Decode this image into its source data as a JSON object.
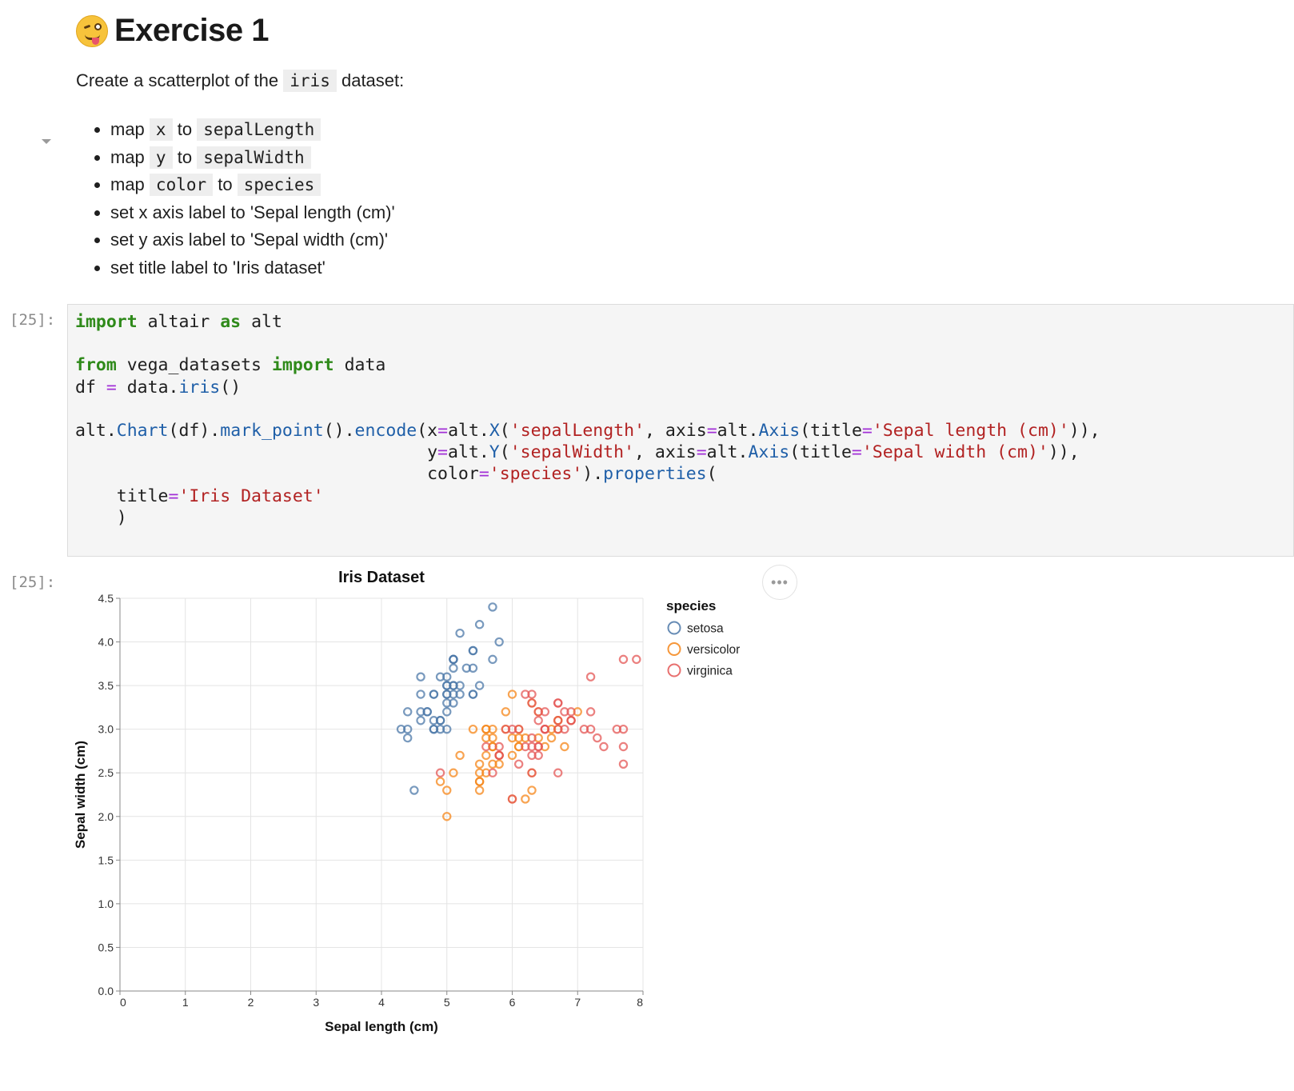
{
  "markdown": {
    "heading": "Exercise 1",
    "heading_emoji": "winking-face-with-tongue-icon",
    "intro_before": "Create a scatterplot of the",
    "intro_code": "iris",
    "intro_after": "dataset:",
    "tasks": [
      {
        "pre": "map",
        "c1": "x",
        "mid": "to",
        "c2": "sepalLength"
      },
      {
        "pre": "map",
        "c1": "y",
        "mid": "to",
        "c2": "sepalWidth"
      },
      {
        "pre": "map",
        "c1": "color",
        "mid": "to",
        "c2": "species"
      }
    ],
    "plain_tasks": [
      "set x axis label to 'Sepal length (cm)'",
      "set y axis label to 'Sepal width (cm)'",
      "set title label to 'Iris dataset'"
    ]
  },
  "code_cell": {
    "prompt": "[25]:",
    "lines": [
      "import altair as alt",
      "",
      "from vega_datasets import data",
      "df = data.iris()",
      "",
      "alt.Chart(df).mark_point().encode(x=alt.X('sepalLength', axis=alt.Axis(title='Sepal length (cm)')),",
      "                                  y=alt.Y('sepalWidth', axis=alt.Axis(title='Sepal width (cm)')),",
      "                                  color='species').properties(",
      "    title='Iris Dataset'",
      "    )"
    ]
  },
  "output_cell": {
    "prompt": "[25]:",
    "more_icon": "ellipsis-icon"
  },
  "chart_data": {
    "type": "scatter",
    "title": "Iris Dataset",
    "xlabel": "Sepal length (cm)",
    "ylabel": "Sepal width (cm)",
    "xlim": [
      0,
      8
    ],
    "ylim": [
      0,
      4.5
    ],
    "x_ticks": [
      "0",
      "1",
      "2",
      "3",
      "4",
      "5",
      "6",
      "7",
      "8"
    ],
    "y_ticks": [
      "0.0",
      "0.5",
      "1.0",
      "1.5",
      "2.0",
      "2.5",
      "3.0",
      "3.5",
      "4.0",
      "4.5"
    ],
    "grid": true,
    "legend_title": "species",
    "legend_position": "right",
    "series": [
      {
        "name": "setosa",
        "color": "#4c78a8",
        "points": [
          [
            5.1,
            3.5
          ],
          [
            4.9,
            3.0
          ],
          [
            4.7,
            3.2
          ],
          [
            4.6,
            3.1
          ],
          [
            5.0,
            3.6
          ],
          [
            5.4,
            3.9
          ],
          [
            4.6,
            3.4
          ],
          [
            5.0,
            3.4
          ],
          [
            4.4,
            2.9
          ],
          [
            4.9,
            3.1
          ],
          [
            5.4,
            3.7
          ],
          [
            4.8,
            3.4
          ],
          [
            4.8,
            3.0
          ],
          [
            4.3,
            3.0
          ],
          [
            5.8,
            4.0
          ],
          [
            5.7,
            4.4
          ],
          [
            5.4,
            3.9
          ],
          [
            5.1,
            3.5
          ],
          [
            5.7,
            3.8
          ],
          [
            5.1,
            3.8
          ],
          [
            5.4,
            3.4
          ],
          [
            5.1,
            3.7
          ],
          [
            4.6,
            3.6
          ],
          [
            5.1,
            3.3
          ],
          [
            4.8,
            3.4
          ],
          [
            5.0,
            3.0
          ],
          [
            5.0,
            3.4
          ],
          [
            5.2,
            3.5
          ],
          [
            5.2,
            3.4
          ],
          [
            4.7,
            3.2
          ],
          [
            4.8,
            3.1
          ],
          [
            5.4,
            3.4
          ],
          [
            5.2,
            4.1
          ],
          [
            5.5,
            4.2
          ],
          [
            4.9,
            3.1
          ],
          [
            5.0,
            3.2
          ],
          [
            5.5,
            3.5
          ],
          [
            4.9,
            3.6
          ],
          [
            4.4,
            3.0
          ],
          [
            5.1,
            3.4
          ],
          [
            5.0,
            3.5
          ],
          [
            4.5,
            2.3
          ],
          [
            4.4,
            3.2
          ],
          [
            5.0,
            3.5
          ],
          [
            5.1,
            3.8
          ],
          [
            4.8,
            3.0
          ],
          [
            5.1,
            3.8
          ],
          [
            4.6,
            3.2
          ],
          [
            5.3,
            3.7
          ],
          [
            5.0,
            3.3
          ]
        ]
      },
      {
        "name": "versicolor",
        "color": "#f58518",
        "points": [
          [
            7.0,
            3.2
          ],
          [
            6.4,
            3.2
          ],
          [
            6.9,
            3.1
          ],
          [
            5.5,
            2.3
          ],
          [
            6.5,
            2.8
          ],
          [
            5.7,
            2.8
          ],
          [
            6.3,
            3.3
          ],
          [
            4.9,
            2.4
          ],
          [
            6.6,
            2.9
          ],
          [
            5.2,
            2.7
          ],
          [
            5.0,
            2.0
          ],
          [
            5.9,
            3.0
          ],
          [
            6.0,
            2.2
          ],
          [
            6.1,
            2.9
          ],
          [
            5.6,
            2.9
          ],
          [
            6.7,
            3.1
          ],
          [
            5.6,
            3.0
          ],
          [
            5.8,
            2.7
          ],
          [
            6.2,
            2.2
          ],
          [
            5.6,
            2.5
          ],
          [
            5.9,
            3.2
          ],
          [
            6.1,
            2.8
          ],
          [
            6.3,
            2.5
          ],
          [
            6.1,
            2.8
          ],
          [
            6.4,
            2.9
          ],
          [
            6.6,
            3.0
          ],
          [
            6.8,
            2.8
          ],
          [
            6.7,
            3.0
          ],
          [
            6.0,
            2.9
          ],
          [
            5.7,
            2.6
          ],
          [
            5.5,
            2.4
          ],
          [
            5.5,
            2.4
          ],
          [
            5.8,
            2.7
          ],
          [
            6.0,
            2.7
          ],
          [
            5.4,
            3.0
          ],
          [
            6.0,
            3.4
          ],
          [
            6.7,
            3.1
          ],
          [
            6.3,
            2.3
          ],
          [
            5.6,
            3.0
          ],
          [
            5.5,
            2.5
          ],
          [
            5.5,
            2.6
          ],
          [
            6.1,
            3.0
          ],
          [
            5.8,
            2.6
          ],
          [
            5.0,
            2.3
          ],
          [
            5.6,
            2.7
          ],
          [
            5.7,
            3.0
          ],
          [
            5.7,
            2.9
          ],
          [
            6.2,
            2.9
          ],
          [
            5.1,
            2.5
          ],
          [
            5.7,
            2.8
          ]
        ]
      },
      {
        "name": "virginica",
        "color": "#e45756",
        "points": [
          [
            6.3,
            3.3
          ],
          [
            5.8,
            2.7
          ],
          [
            7.1,
            3.0
          ],
          [
            6.3,
            2.9
          ],
          [
            6.5,
            3.0
          ],
          [
            7.6,
            3.0
          ],
          [
            4.9,
            2.5
          ],
          [
            7.3,
            2.9
          ],
          [
            6.7,
            2.5
          ],
          [
            7.2,
            3.6
          ],
          [
            6.5,
            3.2
          ],
          [
            6.4,
            2.7
          ],
          [
            6.8,
            3.0
          ],
          [
            5.7,
            2.5
          ],
          [
            5.8,
            2.8
          ],
          [
            6.4,
            3.2
          ],
          [
            6.5,
            3.0
          ],
          [
            7.7,
            3.8
          ],
          [
            7.7,
            2.6
          ],
          [
            6.0,
            2.2
          ],
          [
            6.9,
            3.2
          ],
          [
            5.6,
            2.8
          ],
          [
            7.7,
            2.8
          ],
          [
            6.3,
            2.7
          ],
          [
            6.7,
            3.3
          ],
          [
            7.2,
            3.2
          ],
          [
            6.2,
            2.8
          ],
          [
            6.1,
            3.0
          ],
          [
            6.4,
            2.8
          ],
          [
            7.2,
            3.0
          ],
          [
            7.4,
            2.8
          ],
          [
            7.9,
            3.8
          ],
          [
            6.4,
            2.8
          ],
          [
            6.3,
            2.8
          ],
          [
            6.1,
            2.6
          ],
          [
            7.7,
            3.0
          ],
          [
            6.3,
            3.4
          ],
          [
            6.4,
            3.1
          ],
          [
            6.0,
            3.0
          ],
          [
            6.9,
            3.1
          ],
          [
            6.7,
            3.1
          ],
          [
            6.9,
            3.1
          ],
          [
            5.8,
            2.7
          ],
          [
            6.8,
            3.2
          ],
          [
            6.7,
            3.3
          ],
          [
            6.7,
            3.0
          ],
          [
            6.3,
            2.5
          ],
          [
            6.5,
            3.0
          ],
          [
            6.2,
            3.4
          ],
          [
            5.9,
            3.0
          ]
        ]
      }
    ]
  }
}
